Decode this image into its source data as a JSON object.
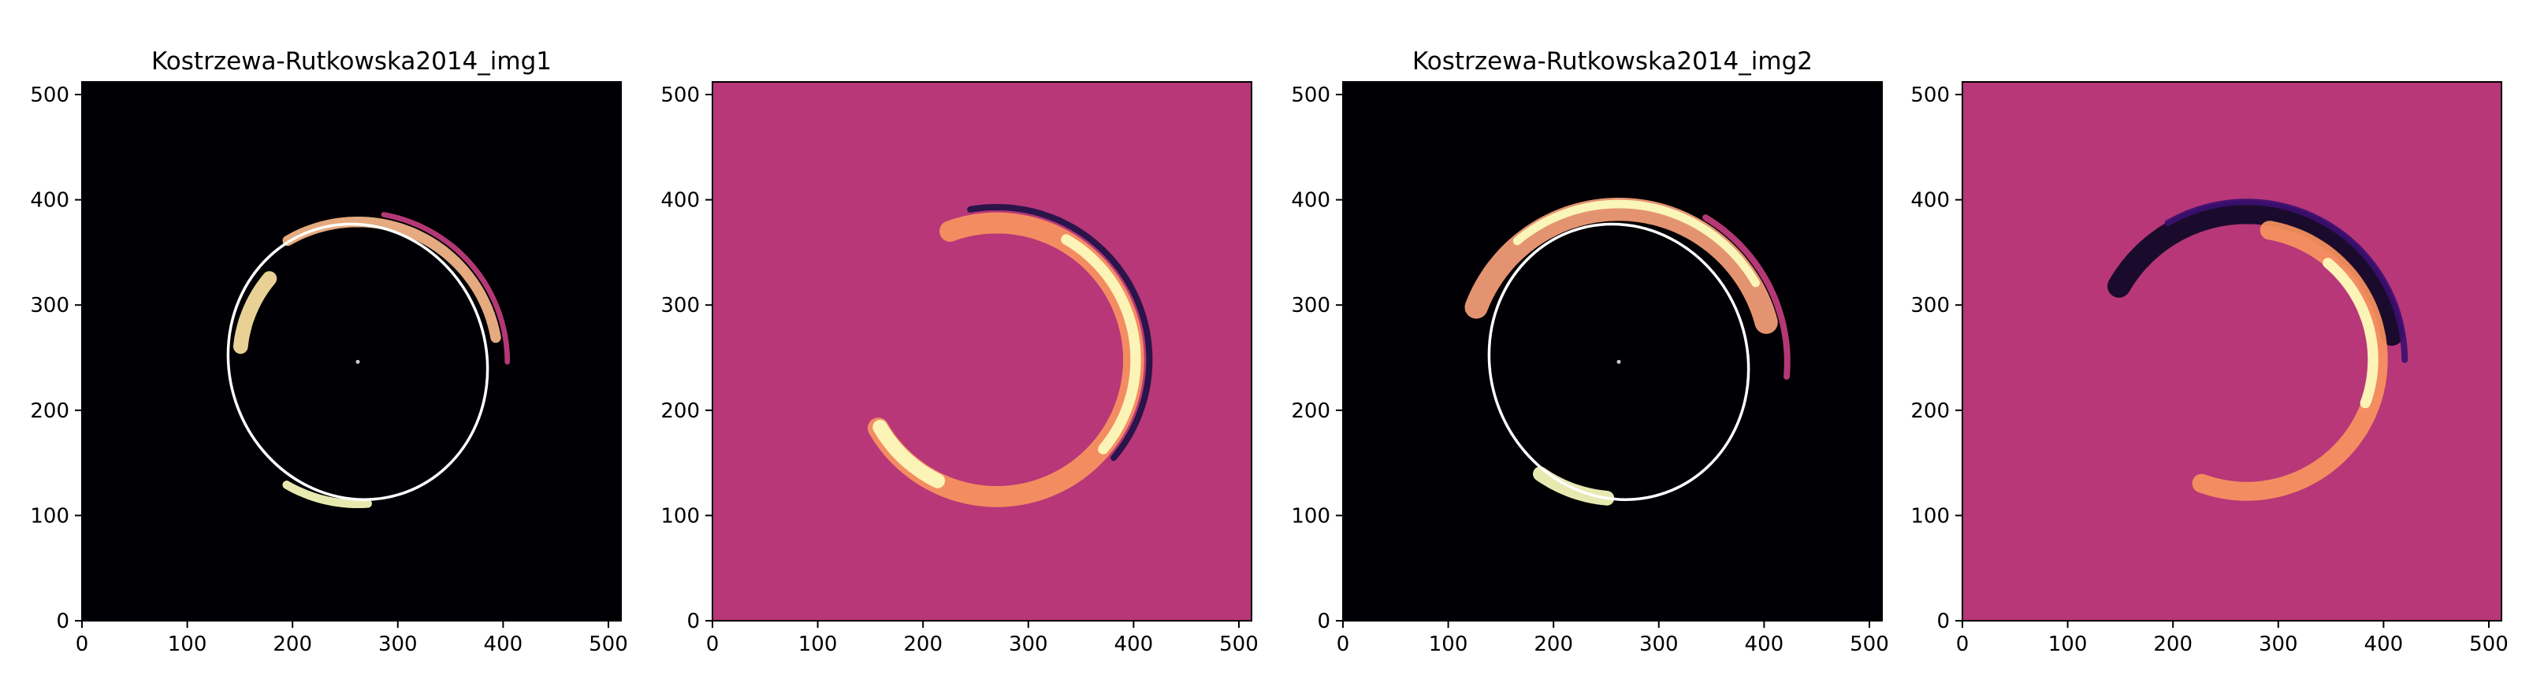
{
  "chart_data": [
    {
      "type": "heatmap",
      "title": "Kostrzewa-Rutkowska2014_img1",
      "colormap": "magma",
      "background": "#000004",
      "xlim": [
        0,
        512
      ],
      "ylim": [
        0,
        512
      ],
      "xticks": [
        0,
        100,
        200,
        300,
        400,
        500
      ],
      "yticks": [
        0,
        100,
        200,
        300,
        400,
        500
      ],
      "arcs": [
        {
          "cx": 270,
          "cy": 248,
          "r": 120,
          "a0": 140,
          "a1": 175,
          "w": 14,
          "color": "#fde3a3"
        },
        {
          "cx": 262,
          "cy": 246,
          "r": 133,
          "a0": 10,
          "a1": 120,
          "w": 10,
          "color": "#f9b98a"
        },
        {
          "cx": 262,
          "cy": 246,
          "r": 142,
          "a0": 0,
          "a1": 80,
          "w": 5,
          "color": "#c33d80"
        },
        {
          "cx": 262,
          "cy": 246,
          "r": 135,
          "a0": 240,
          "a1": 275,
          "w": 8,
          "color": "#fcfdbf"
        }
      ],
      "ellipse": {
        "cx": 262,
        "cy": 246,
        "rx": 122,
        "ry": 132,
        "rotation": -20,
        "color": "#ffffff"
      },
      "center_point": {
        "x": 262,
        "y": 246
      }
    },
    {
      "type": "heatmap",
      "title": "",
      "colormap": "magma",
      "background": "#b73779",
      "xlim": [
        0,
        512
      ],
      "ylim": [
        0,
        512
      ],
      "xticks": [
        0,
        100,
        200,
        300,
        400,
        500
      ],
      "yticks": [
        0,
        100,
        200,
        300,
        400,
        500
      ],
      "arcs": [
        {
          "cx": 270,
          "cy": 248,
          "r": 130,
          "a0": -150,
          "a1": 110,
          "w": 20,
          "color": "#f8945f"
        },
        {
          "cx": 270,
          "cy": 248,
          "r": 132,
          "a0": -40,
          "a1": 60,
          "w": 10,
          "color": "#fcfdbf"
        },
        {
          "cx": 270,
          "cy": 248,
          "r": 145,
          "a0": -40,
          "a1": 100,
          "w": 6,
          "color": "#1d1147"
        },
        {
          "cx": 270,
          "cy": 248,
          "r": 128,
          "a0": -150,
          "a1": -115,
          "w": 14,
          "color": "#fcfdbf"
        }
      ]
    },
    {
      "type": "heatmap",
      "title": "Kostrzewa-Rutkowska2014_img2",
      "colormap": "magma",
      "background": "#000004",
      "xlim": [
        0,
        512
      ],
      "ylim": [
        0,
        512
      ],
      "xticks": [
        0,
        100,
        200,
        300,
        400,
        500
      ],
      "yticks": [
        0,
        100,
        200,
        300,
        400,
        500
      ],
      "arcs": [
        {
          "cx": 262,
          "cy": 246,
          "r": 145,
          "a0": 15,
          "a1": 160,
          "w": 22,
          "color": "#f7a07a"
        },
        {
          "cx": 262,
          "cy": 246,
          "r": 150,
          "a0": 30,
          "a1": 130,
          "w": 8,
          "color": "#fcfdbf"
        },
        {
          "cx": 262,
          "cy": 246,
          "r": 130,
          "a0": -125,
          "a1": -95,
          "w": 14,
          "color": "#fcfdbf"
        },
        {
          "cx": 262,
          "cy": 246,
          "r": 160,
          "a0": -5,
          "a1": 60,
          "w": 6,
          "color": "#c33d80"
        }
      ],
      "ellipse": {
        "cx": 262,
        "cy": 246,
        "rx": 122,
        "ry": 132,
        "rotation": -20,
        "color": "#ffffff"
      },
      "center_point": {
        "x": 262,
        "y": 246
      }
    },
    {
      "type": "heatmap",
      "title": "",
      "colormap": "magma",
      "background": "#b73779",
      "xlim": [
        0,
        512
      ],
      "ylim": [
        0,
        512
      ],
      "xticks": [
        0,
        100,
        200,
        300,
        400,
        500
      ],
      "yticks": [
        0,
        100,
        200,
        300,
        400,
        500
      ],
      "arcs": [
        {
          "cx": 270,
          "cy": 248,
          "r": 140,
          "a0": 10,
          "a1": 150,
          "w": 22,
          "color": "#0c0826"
        },
        {
          "cx": 270,
          "cy": 248,
          "r": 125,
          "a0": -110,
          "a1": 80,
          "w": 18,
          "color": "#f8945f"
        },
        {
          "cx": 270,
          "cy": 248,
          "r": 120,
          "a0": -20,
          "a1": 50,
          "w": 10,
          "color": "#fcfdbf"
        },
        {
          "cx": 270,
          "cy": 248,
          "r": 150,
          "a0": 0,
          "a1": 120,
          "w": 6,
          "color": "#3b0f70"
        }
      ]
    }
  ]
}
